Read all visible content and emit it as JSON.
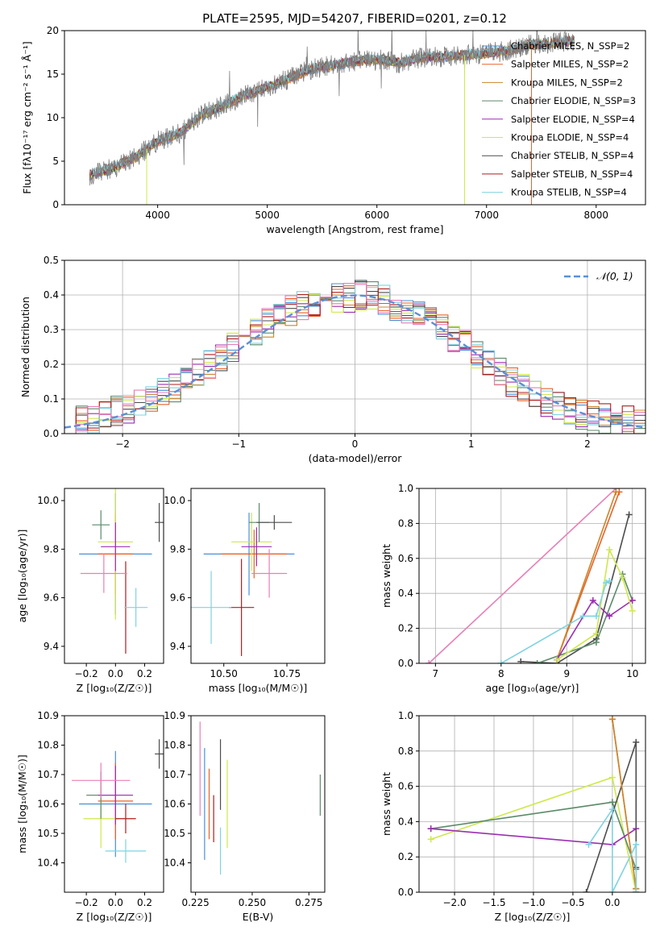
{
  "figure": {
    "title": "PLATE=2595, MJD=54207, FIBERID=0201, z=0.12"
  },
  "model_colors": {
    "Chabrier MILES": "#4a8fd8",
    "Salpeter MILES": "#e8622a",
    "Kroupa MILES": "#c9862a",
    "Chabrier ELODIE": "#5c8a6a",
    "Salpeter ELODIE": "#9b2fb0",
    "Kroupa ELODIE": "#cfe84c",
    "Chabrier STELIB": "#4d4d4d",
    "Salpeter STELIB": "#b01c1c",
    "Kroupa STELIB": "#7fd3e0",
    "extra": "#e87fb6",
    "data": "#808080"
  },
  "chart_data": [
    {
      "id": "spectrum",
      "type": "line",
      "title": "PLATE=2595, MJD=54207, FIBERID=0201, z=0.12",
      "xlabel": "wavelength [Angstrom, rest frame]",
      "ylabel": "Flux [fλ10⁻¹⁷ erg cm⁻² s⁻¹ Å⁻¹]",
      "xlim": [
        3150,
        8450
      ],
      "ylim": [
        0,
        20
      ],
      "xticks": [
        4000,
        5000,
        6000,
        7000,
        8000
      ],
      "yticks": [
        0,
        5,
        10,
        15,
        20
      ],
      "legend": "top-right",
      "legend_entries": [
        {
          "label": "Chabrier MILES, N_SSP=2",
          "model": "Chabrier MILES"
        },
        {
          "label": "Salpeter MILES, N_SSP=2",
          "model": "Salpeter MILES"
        },
        {
          "label": "Kroupa MILES, N_SSP=2",
          "model": "Kroupa MILES"
        },
        {
          "label": "Chabrier ELODIE, N_SSP=3",
          "model": "Chabrier ELODIE"
        },
        {
          "label": "Salpeter ELODIE, N_SSP=4",
          "model": "Salpeter ELODIE"
        },
        {
          "label": "Kroupa ELODIE, N_SSP=4",
          "model": "Kroupa ELODIE"
        },
        {
          "label": "Chabrier STELIB, N_SSP=4",
          "model": "Chabrier STELIB"
        },
        {
          "label": "Salpeter STELIB, N_SSP=4",
          "model": "Salpeter STELIB"
        },
        {
          "label": "Kroupa STELIB, N_SSP=4",
          "model": "Kroupa STELIB"
        }
      ],
      "continuum": {
        "x": [
          3380,
          3600,
          3800,
          4000,
          4200,
          4400,
          4600,
          4800,
          5000,
          5200,
          5400,
          5600,
          5800,
          6000,
          6200,
          6400,
          6600,
          6800,
          7000,
          7200,
          7400,
          7600,
          7800
        ],
        "y": [
          3.4,
          4.2,
          5.5,
          7.3,
          8.2,
          10.3,
          11.4,
          12.6,
          13.5,
          14.5,
          15.6,
          16.0,
          16.5,
          16.7,
          16.3,
          16.9,
          17.0,
          17.2,
          17.4,
          17.7,
          18.4,
          18.6,
          18.8
        ]
      }
    },
    {
      "id": "residuals",
      "type": "line",
      "xlabel": "(data-model)/error",
      "ylabel": "Normed distribution",
      "xlim": [
        -2.5,
        2.5
      ],
      "ylim": [
        0,
        0.5
      ],
      "xticks": [
        -2,
        -1,
        0,
        1,
        2
      ],
      "yticks": [
        0.0,
        0.1,
        0.2,
        0.3,
        0.4,
        0.5
      ],
      "grid": true,
      "legend": "top-right",
      "reference_label": "𝒩(0, 1)",
      "bin_width": 0.1,
      "bin_start": -2.5,
      "envelope": [
        0.03,
        0.035,
        0.04,
        0.055,
        0.065,
        0.075,
        0.085,
        0.1,
        0.115,
        0.13,
        0.155,
        0.175,
        0.2,
        0.225,
        0.25,
        0.28,
        0.3,
        0.32,
        0.34,
        0.355,
        0.37,
        0.38,
        0.385,
        0.39,
        0.395,
        0.4,
        0.395,
        0.385,
        0.37,
        0.355,
        0.34,
        0.32,
        0.3,
        0.28,
        0.255,
        0.23,
        0.2,
        0.175,
        0.15,
        0.13,
        0.11,
        0.09,
        0.075,
        0.065,
        0.055,
        0.05,
        0.045,
        0.04,
        0.035,
        0.03
      ]
    },
    {
      "id": "age-vs-z",
      "type": "scatter",
      "xlabel": "Z [log₁₀(Z/Z☉)]",
      "ylabel": "age  [log₁₀(age/yr)]",
      "xlim": [
        -0.35,
        0.33
      ],
      "ylim": [
        9.33,
        10.05
      ],
      "xticks": [
        -0.2,
        0.0,
        0.2
      ],
      "xticklabels": [
        "−0.2",
        "0.0",
        "0.2"
      ],
      "yticks": [
        9.4,
        9.6,
        9.8,
        10.0
      ],
      "yticklabels": [
        "9.4",
        "9.6",
        "9.8",
        "10.0"
      ],
      "points": [
        {
          "model": "Chabrier MILES",
          "x": 0.0,
          "y": 9.78,
          "xerr": 0.25,
          "yerr": 0.25
        },
        {
          "model": "Salpeter MILES",
          "x": 0.0,
          "y": 9.78,
          "xerr": 0.12,
          "yerr": 0.17
        },
        {
          "model": "Kroupa ELODIE",
          "x": 0.0,
          "y": 9.83,
          "xerr": 0.12,
          "yerr": 0.32
        },
        {
          "model": "Chabrier ELODIE",
          "x": -0.1,
          "y": 9.9,
          "xerr": 0.06,
          "yerr": 0.06
        },
        {
          "model": "Salpeter ELODIE",
          "x": 0.0,
          "y": 9.81,
          "xerr": 0.1,
          "yerr": 0.1
        },
        {
          "model": "Chabrier STELIB",
          "x": 0.3,
          "y": 9.91,
          "xerr": 0.03,
          "yerr": 0.08
        },
        {
          "model": "Salpeter STELIB",
          "x": 0.07,
          "y": 9.56,
          "xerr": 0.0,
          "yerr": 0.19
        },
        {
          "model": "Kroupa STELIB",
          "x": 0.14,
          "y": 9.56,
          "xerr": 0.08,
          "yerr": 0.08
        },
        {
          "model": "extra",
          "x": -0.08,
          "y": 9.7,
          "xerr": 0.16,
          "yerr": 0.08
        }
      ]
    },
    {
      "id": "age-vs-mass",
      "type": "scatter",
      "xlabel": "mass [log₁₀(M/M☉)]",
      "xlim": [
        10.37,
        10.9
      ],
      "ylim": [
        9.33,
        10.05
      ],
      "xticks": [
        10.5,
        10.75
      ],
      "xticklabels": [
        "10.50",
        "10.75"
      ],
      "yticks": [
        9.4,
        9.6,
        9.8,
        10.0
      ],
      "yticklabels": [
        "9.4",
        "9.6",
        "9.8",
        "10.0"
      ],
      "points": [
        {
          "model": "Chabrier MILES",
          "x": 10.6,
          "y": 9.78,
          "xerr": 0.18,
          "yerr": 0.17
        },
        {
          "model": "Salpeter MILES",
          "x": 10.62,
          "y": 9.78,
          "xerr": 0.13,
          "yerr": 0.1
        },
        {
          "model": "Kroupa ELODIE",
          "x": 10.61,
          "y": 9.83,
          "xerr": 0.08,
          "yerr": 0.12
        },
        {
          "model": "Chabrier ELODIE",
          "x": 10.64,
          "y": 9.91,
          "xerr": 0.04,
          "yerr": 0.08
        },
        {
          "model": "Salpeter ELODIE",
          "x": 10.63,
          "y": 9.81,
          "xerr": 0.06,
          "yerr": 0.08
        },
        {
          "model": "Chabrier STELIB",
          "x": 10.7,
          "y": 9.91,
          "xerr": 0.07,
          "yerr": 0.03
        },
        {
          "model": "Salpeter STELIB",
          "x": 10.57,
          "y": 9.56,
          "xerr": 0.05,
          "yerr": 0.2
        },
        {
          "model": "Kroupa STELIB",
          "x": 10.45,
          "y": 9.56,
          "xerr": 0.08,
          "yerr": 0.15
        },
        {
          "model": "extra",
          "x": 10.68,
          "y": 9.7,
          "xerr": 0.07,
          "yerr": 0.1
        }
      ]
    },
    {
      "id": "mass-weight-vs-age",
      "type": "line",
      "xlabel": "age  [log₁₀(age/yr)]",
      "ylabel": "mass weight",
      "xlim": [
        6.75,
        10.2
      ],
      "ylim": [
        0,
        1
      ],
      "xticks": [
        7,
        8,
        9,
        10
      ],
      "yticks": [
        0.0,
        0.2,
        0.4,
        0.6,
        0.8,
        1.0
      ],
      "grid": true,
      "series": [
        {
          "model": "extra",
          "x": [
            6.9,
            9.75
          ],
          "y": [
            0.0,
            1.0
          ]
        },
        {
          "model": "Salpeter MILES",
          "x": [
            8.85,
            9.8
          ],
          "y": [
            0.02,
            0.98
          ]
        },
        {
          "model": "Kroupa MILES",
          "x": [
            8.85,
            9.75
          ],
          "y": [
            0.02,
            0.98
          ]
        },
        {
          "model": "Chabrier STELIB",
          "x": [
            8.3,
            8.85,
            9.45,
            9.95
          ],
          "y": [
            0.01,
            0.0,
            0.14,
            0.85
          ]
        },
        {
          "model": "Chabrier ELODIE",
          "x": [
            8.55,
            9.45,
            9.85,
            10.0
          ],
          "y": [
            0.0,
            0.12,
            0.51,
            0.36
          ]
        },
        {
          "model": "Salpeter ELODIE",
          "x": [
            8.85,
            9.4,
            9.65,
            10.0
          ],
          "y": [
            0.02,
            0.36,
            0.27,
            0.36
          ]
        },
        {
          "model": "Kroupa ELODIE",
          "x": [
            8.85,
            9.45,
            9.65,
            9.85,
            10.0
          ],
          "y": [
            0.02,
            0.17,
            0.65,
            0.49,
            0.3
          ]
        },
        {
          "model": "Kroupa STELIB",
          "x": [
            8.0,
            9.25,
            9.45,
            9.6,
            9.65
          ],
          "y": [
            0.0,
            0.27,
            0.27,
            0.46,
            0.47
          ]
        }
      ]
    },
    {
      "id": "mass-vs-z",
      "type": "scatter",
      "xlabel": "Z [log₁₀(Z/Z☉)]",
      "ylabel": "mass [log₁₀(M/M☉)]",
      "xlim": [
        -0.35,
        0.33
      ],
      "ylim": [
        10.3,
        10.9
      ],
      "xticks": [
        -0.2,
        0.0,
        0.2
      ],
      "xticklabels": [
        "−0.2",
        "0.0",
        "0.2"
      ],
      "yticks": [
        10.4,
        10.5,
        10.6,
        10.7,
        10.8,
        10.9
      ],
      "yticklabels": [
        "10.4",
        "10.5",
        "10.6",
        "10.7",
        "10.8",
        "10.9"
      ],
      "points": [
        {
          "model": "Chabrier MILES",
          "x": 0.0,
          "y": 10.6,
          "xerr": 0.25,
          "yerr": 0.18
        },
        {
          "model": "Salpeter MILES",
          "x": 0.0,
          "y": 10.61,
          "xerr": 0.12,
          "yerr": 0.13
        },
        {
          "model": "Kroupa ELODIE",
          "x": -0.1,
          "y": 10.55,
          "xerr": 0.12,
          "yerr": 0.1
        },
        {
          "model": "Chabrier ELODIE",
          "x": -0.1,
          "y": 10.63,
          "xerr": 0.1,
          "yerr": 0.08
        },
        {
          "model": "Salpeter ELODIE",
          "x": 0.0,
          "y": 10.63,
          "xerr": 0.12,
          "yerr": 0.1
        },
        {
          "model": "Chabrier STELIB",
          "x": 0.3,
          "y": 10.77,
          "xerr": 0.03,
          "yerr": 0.05
        },
        {
          "model": "Salpeter STELIB",
          "x": 0.07,
          "y": 10.55,
          "xerr": 0.07,
          "yerr": 0.05
        },
        {
          "model": "Kroupa STELIB",
          "x": 0.07,
          "y": 10.44,
          "xerr": 0.14,
          "yerr": 0.04
        },
        {
          "model": "extra",
          "x": -0.1,
          "y": 10.68,
          "xerr": 0.2,
          "yerr": 0.06
        }
      ]
    },
    {
      "id": "mass-vs-ebv",
      "type": "scatter",
      "xlabel": "E(B-V)",
      "xlim": [
        0.223,
        0.282
      ],
      "ylim": [
        10.3,
        10.9
      ],
      "xticks": [
        0.225,
        0.25,
        0.275
      ],
      "xticklabels": [
        "0.225",
        "0.250",
        "0.275"
      ],
      "yticks": [
        10.4,
        10.5,
        10.6,
        10.7,
        10.8,
        10.9
      ],
      "yticklabels": [
        "10.4",
        "10.5",
        "10.6",
        "10.7",
        "10.8",
        "10.9"
      ],
      "points": [
        {
          "model": "extra",
          "x": 0.227,
          "y": 10.72,
          "xerr": 0.0,
          "yerr": 0.16
        },
        {
          "model": "Chabrier MILES",
          "x": 0.229,
          "y": 10.6,
          "xerr": 0.0,
          "yerr": 0.19
        },
        {
          "model": "Salpeter MILES",
          "x": 0.231,
          "y": 10.6,
          "xerr": 0.0,
          "yerr": 0.12
        },
        {
          "model": "Salpeter STELIB",
          "x": 0.233,
          "y": 10.55,
          "xerr": 0.0,
          "yerr": 0.08
        },
        {
          "model": "Chabrier STELIB",
          "x": 0.236,
          "y": 10.7,
          "xerr": 0.0,
          "yerr": 0.12
        },
        {
          "model": "Kroupa STELIB",
          "x": 0.236,
          "y": 10.44,
          "xerr": 0.0,
          "yerr": 0.08
        },
        {
          "model": "Kroupa ELODIE",
          "x": 0.239,
          "y": 10.6,
          "xerr": 0.0,
          "yerr": 0.15
        },
        {
          "model": "Chabrier ELODIE",
          "x": 0.28,
          "y": 10.63,
          "xerr": 0.0,
          "yerr": 0.07
        }
      ]
    },
    {
      "id": "mass-weight-vs-z",
      "type": "line",
      "xlabel": "Z [log₁₀(Z/Z☉)]",
      "ylabel": "mass weight",
      "xlim": [
        -2.45,
        0.42
      ],
      "ylim": [
        0,
        1
      ],
      "xticks": [
        -2.0,
        -1.5,
        -1.0,
        -0.5,
        0.0
      ],
      "xticklabels": [
        "−2.0",
        "−1.5",
        "−1.0",
        "−0.5",
        "0.0"
      ],
      "yticks": [
        0.0,
        0.2,
        0.4,
        0.6,
        0.8,
        1.0
      ],
      "grid": true,
      "series": [
        {
          "model": "Kroupa ELODIE",
          "x": [
            -2.3,
            0.0,
            0.3
          ],
          "y": [
            0.3,
            0.65,
            0.0
          ]
        },
        {
          "model": "Chabrier ELODIE",
          "x": [
            -2.3,
            0.0,
            0.3
          ],
          "y": [
            0.36,
            0.51,
            0.13
          ]
        },
        {
          "model": "Salpeter ELODIE",
          "x": [
            -2.3,
            0.0,
            0.3
          ],
          "y": [
            0.36,
            0.27,
            0.36
          ]
        },
        {
          "model": "Chabrier STELIB",
          "x": [
            -0.33,
            0.3,
            0.3,
            0.3
          ],
          "y": [
            0.0,
            0.85,
            0.14,
            0.0
          ]
        },
        {
          "model": "Salpeter MILES",
          "x": [
            0.0,
            0.3
          ],
          "y": [
            0.98,
            0.02
          ]
        },
        {
          "model": "Kroupa MILES",
          "x": [
            0.0,
            0.3
          ],
          "y": [
            0.98,
            0.02
          ]
        },
        {
          "model": "Kroupa STELIB",
          "x": [
            -0.3,
            0.0,
            0.0,
            0.3,
            0.3
          ],
          "y": [
            0.27,
            0.47,
            0.0,
            0.27,
            0.0
          ]
        }
      ]
    }
  ]
}
